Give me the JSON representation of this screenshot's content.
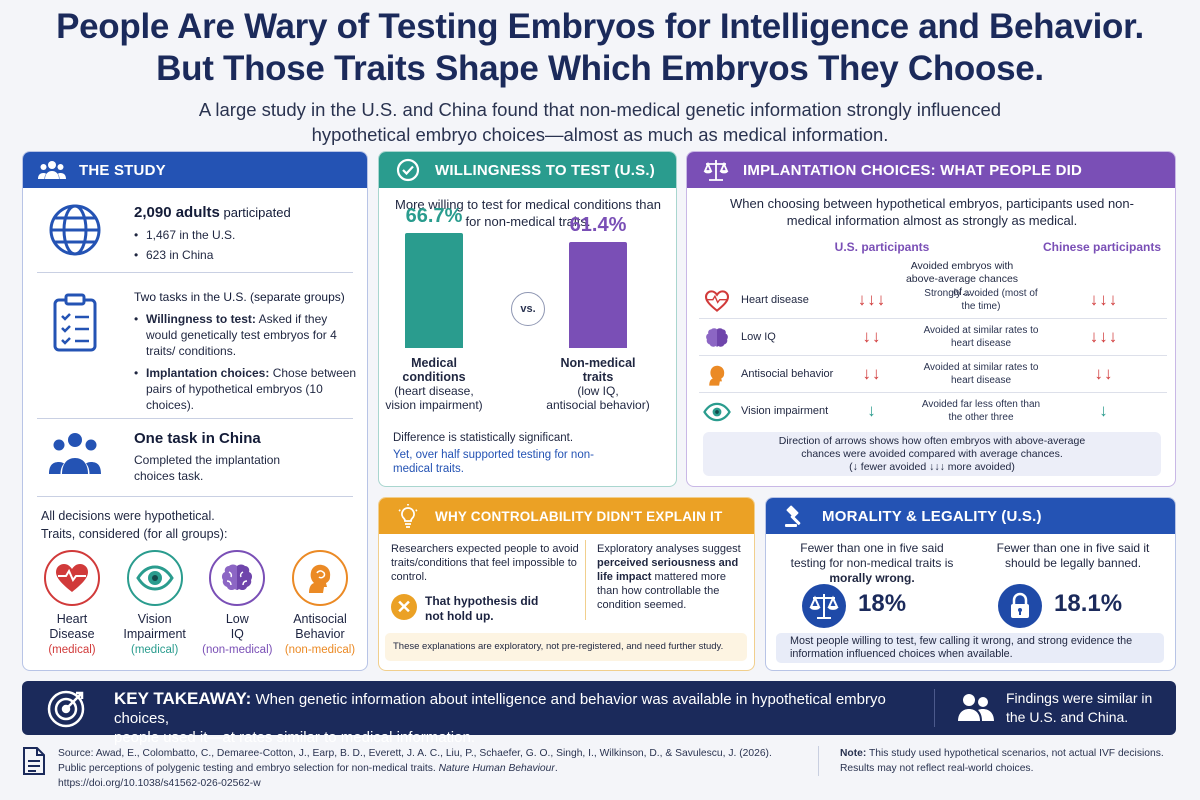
{
  "title_line1": "People Are Wary of Testing Embryos for Intelligence and Behavior.",
  "title_line2": "But Those Traits Shape Which Embryos They Choose.",
  "subtitle_line1": "A large study in the U.S. and China found that non-medical genetic information strongly influenced",
  "subtitle_line2": "hypothetical embryo choices—almost as much as medical information.",
  "study": {
    "header": "THE STUDY",
    "participants_bold": "2,090 adults",
    "participants_rest": " participated",
    "us_count": "1,467 in the U.S.",
    "china_count": "623 in China",
    "tasks_bold": "Two tasks",
    "tasks_rest": " in the U.S. (separate groups)",
    "task1_bold": "Willingness to test:",
    "task1_rest": " Asked if they would genetically test embryos for 4 traits/ conditions.",
    "task2_bold": "Implantation choices:",
    "task2_rest": " Chose between pairs of hypothetical embryos (10 choices).",
    "china_task_title": "One task in China",
    "china_task_desc": "Completed the implantation choices task.",
    "hypothetical_note": "All decisions were hypothetical.",
    "traits_note": "Traits, considered (for all groups):",
    "traits": [
      {
        "name1": "Heart",
        "name2": "Disease",
        "category": "(medical)",
        "color": "#d13a3a",
        "icon": "heart-icon"
      },
      {
        "name1": "Vision",
        "name2": "Impairment",
        "category": "(medical)",
        "color": "#2a9c8e",
        "icon": "eye-icon"
      },
      {
        "name1": "Low",
        "name2": "IQ",
        "category": "(non-medical)",
        "color": "#7a4fb6",
        "icon": "brain-icon"
      },
      {
        "name1": "Antisocial",
        "name2": "Behavior",
        "category": "(non-medical)",
        "color": "#eb8a25",
        "icon": "person-head-icon"
      }
    ]
  },
  "willingness": {
    "header": "WILLINGNESS TO TEST (U.S.)",
    "intro": "More willing to test for medical conditions than for non-medical traits.",
    "medical_pct": "66.7%",
    "medical_value": 66.7,
    "nonmedical_pct": "61.4%",
    "nonmedical_value": 61.4,
    "vs": "vs.",
    "medical_label_bold1": "Medical",
    "medical_label_bold2": "conditions",
    "medical_label_detail1": "(heart disease,",
    "medical_label_detail2": "vision impairment)",
    "nonmedical_label_bold1": "Non-medical",
    "nonmedical_label_bold2": "traits",
    "nonmedical_label_detail1": "(low IQ,",
    "nonmedical_label_detail2": "antisocial behavior)",
    "significance": "Difference is statistically significant.",
    "half_support": "Yet, over half supported testing for non-medical traits.",
    "medical_color": "#2a9c8e",
    "nonmedical_color": "#7a4fb6"
  },
  "implantation": {
    "header": "IMPLANTATION CHOICES: WHAT PEOPLE DID",
    "intro": "When choosing between hypothetical embryos, participants used non-medical information almost as strongly as medical.",
    "us_label": "U.S. participants",
    "china_label": "Chinese participants",
    "middle_header": "Avoided embryos with above-average chances of...",
    "rows": [
      {
        "name": "Heart disease",
        "icon": "heart-icon",
        "us": "↓↓↓",
        "desc": "Strongly avoided (most of the time)",
        "china": "↓↓↓",
        "arrow_color": "red"
      },
      {
        "name": "Low IQ",
        "icon": "brain-icon",
        "us": "↓↓",
        "desc": "Avoided at similar rates to heart disease",
        "china": "↓↓↓",
        "arrow_color": "red"
      },
      {
        "name": "Antisocial behavior",
        "icon": "person-head-icon",
        "us": "↓↓",
        "desc": "Avoided at similar rates to heart disease",
        "china": "↓↓",
        "arrow_color": "red"
      },
      {
        "name": "Vision impairment",
        "icon": "eye-icon",
        "us": "↓",
        "desc": "Avoided far less often than the other three",
        "china": "↓",
        "arrow_color": "teal"
      }
    ],
    "note_line1": "Direction of arrows shows how often embryos with above-average",
    "note_line2": "chances were avoided compared with average chances.",
    "note_line3": "(↓ fewer avoided   ↓↓↓ more avoided)"
  },
  "why": {
    "header": "WHY CONTROLABILITY DIDN'T EXPLAIN IT",
    "expected": "Researchers expected people to avoid traits/conditions that feel impossible to control.",
    "hypothesis": "That hypothesis did not hold up.",
    "exploratory_pre": "Exploratory analyses suggest ",
    "exploratory_bold": "perceived seriousness and life impact",
    "exploratory_post": " mattered more than how controllable the condition seemed.",
    "footnote": "These explanations are exploratory, not pre-registered, and need further study."
  },
  "morality": {
    "header": "MORALITY & LEGALITY (U.S.)",
    "moral_line1": "Fewer than one in five said",
    "moral_line2": "testing for non-medical traits is",
    "moral_bold": "morally wrong.",
    "moral_pct": "18%",
    "legal_line1": "Fewer than one in five said it",
    "legal_line2": "should be legally banned.",
    "legal_pct": "18.1%",
    "summary": "Most people willing to test, few calling it wrong, and strong evidence the information influenced choices when available."
  },
  "key": {
    "label": "KEY TAKEAWAY:",
    "text1": "When genetic information about intelligence and behavior was available in hypothetical embryo choices,",
    "text2": "people used it—at rates similar to medical information.",
    "side": "Findings were similar in the U.S. and China."
  },
  "source": {
    "line1": "Source: Awad, E., Colombatto, C., Demaree-Cotton, J., Earp, B. D., Everett, J. A. C., Liu, P., Schaefer, G. O., Singh, I., Wilkinson, D., & Savulescu, J. (2026).",
    "line2_pre": "Public perceptions of polygenic testing and embryo selection for non-medical traits. ",
    "line2_journal": "Nature Human Behaviour",
    "line2_post": ".",
    "line3": "https://doi.org/10.1038/s41562-026-02562-w",
    "note_label": "Note:",
    "note_text1": " This study used hypothetical scenarios, not actual IVF decisions.",
    "note_text2": "Results may not reflect real-world choices."
  }
}
